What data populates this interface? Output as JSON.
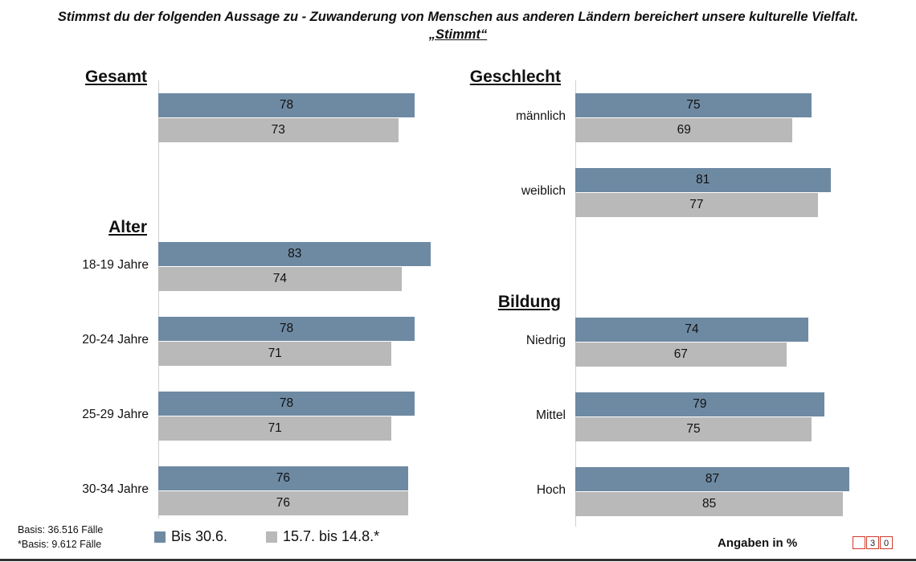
{
  "chart_data": {
    "type": "bar",
    "orientation": "horizontal",
    "title": "Stimmst du der folgenden Aussage zu - Zuwanderung von Menschen aus anderen Ländern bereichert unsere kulturelle Vielfalt.",
    "subtitle": "„Stimmt“",
    "unit_note": "Angaben in %",
    "series_names": [
      "Bis 30.6.",
      "15.7. bis 14.8.*"
    ],
    "colors": {
      "series1": "#6e8aa3",
      "series2": "#b9b9b9"
    },
    "groups": [
      {
        "title": "Gesamt",
        "categories": [
          {
            "label": "",
            "values": [
              78,
              73
            ]
          }
        ]
      },
      {
        "title": "Alter",
        "categories": [
          {
            "label": "18-19 Jahre",
            "values": [
              83,
              74
            ]
          },
          {
            "label": "20-24 Jahre",
            "values": [
              78,
              71
            ]
          },
          {
            "label": "25-29 Jahre",
            "values": [
              78,
              71
            ]
          },
          {
            "label": "30-34 Jahre",
            "values": [
              76,
              76
            ]
          }
        ]
      },
      {
        "title": "Geschlecht",
        "categories": [
          {
            "label": "männlich",
            "values": [
              75,
              69
            ]
          },
          {
            "label": "weiblich",
            "values": [
              81,
              77
            ]
          }
        ]
      },
      {
        "title": "Bildung",
        "categories": [
          {
            "label": "Niedrig",
            "values": [
              74,
              67
            ]
          },
          {
            "label": "Mittel",
            "values": [
              79,
              75
            ]
          },
          {
            "label": "Hoch",
            "values": [
              87,
              85
            ]
          }
        ]
      }
    ]
  },
  "footer": {
    "basis_1": "Basis: 36.516 Fälle",
    "basis_2": "*Basis: 9.612 Fälle",
    "badge_digits": [
      "",
      "3",
      "0"
    ]
  }
}
